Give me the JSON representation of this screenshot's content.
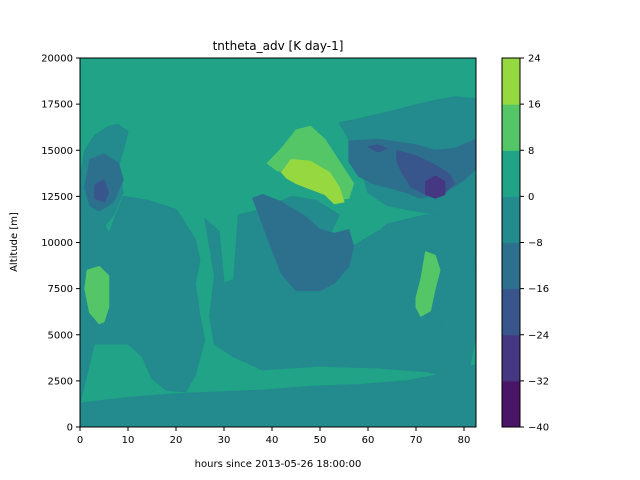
{
  "chart_data": {
    "type": "heatmap",
    "subtype": "filled-contour",
    "title": "tntheta_adv [K day-1]",
    "xlabel": "hours since 2013-05-26 18:00:00",
    "ylabel": "Altitude [m]",
    "xlim": [
      0,
      82.5
    ],
    "ylim": [
      0,
      20000
    ],
    "xticks": [
      0,
      10,
      20,
      30,
      40,
      50,
      60,
      70,
      80
    ],
    "yticks": [
      0,
      2500,
      5000,
      7500,
      10000,
      12500,
      15000,
      17500,
      20000
    ],
    "colorbar": {
      "levels": [
        -40,
        -32,
        -24,
        -16,
        -8,
        0,
        8,
        16,
        24
      ],
      "tick_labels": [
        "−40",
        "−32",
        "−24",
        "−16",
        "−8",
        "0",
        "8",
        "16",
        "24"
      ],
      "colors": [
        "#481567",
        "#453781",
        "#39568c",
        "#2d708e",
        "#238a8d",
        "#20a387",
        "#55c667",
        "#95d840",
        "#dce319"
      ]
    },
    "background_level_index": 5,
    "regions": [
      {
        "level": 4,
        "points": [
          [
            0,
            0
          ],
          [
            82.5,
            0
          ],
          [
            82.5,
            3400
          ],
          [
            78,
            3000
          ],
          [
            68,
            2500
          ],
          [
            58,
            2300
          ],
          [
            48,
            2200
          ],
          [
            38,
            2000
          ],
          [
            20,
            1800
          ],
          [
            10,
            1600
          ],
          [
            0,
            1300
          ]
        ]
      },
      {
        "level": 4,
        "points": [
          [
            0,
            1300
          ],
          [
            3,
            4500
          ],
          [
            10,
            4500
          ],
          [
            13,
            3800
          ],
          [
            15,
            2600
          ],
          [
            18,
            2000
          ],
          [
            22,
            1900
          ],
          [
            24,
            2800
          ],
          [
            26,
            4700
          ],
          [
            25,
            6000
          ],
          [
            24,
            7800
          ],
          [
            25,
            9000
          ],
          [
            24,
            10200
          ],
          [
            20,
            11800
          ],
          [
            14,
            12300
          ],
          [
            9,
            12500
          ],
          [
            6,
            10500
          ],
          [
            3,
            12100
          ],
          [
            0,
            12500
          ]
        ]
      },
      {
        "level": 4,
        "points": [
          [
            26,
            11300
          ],
          [
            28,
            8200
          ],
          [
            27,
            6000
          ],
          [
            28,
            4500
          ],
          [
            32,
            3800
          ],
          [
            38,
            3100
          ],
          [
            50,
            3300
          ],
          [
            62,
            3200
          ],
          [
            72,
            3000
          ],
          [
            78,
            2700
          ],
          [
            81,
            3000
          ],
          [
            82.5,
            5000
          ],
          [
            82.5,
            9800
          ],
          [
            79,
            10500
          ],
          [
            74,
            11000
          ],
          [
            72,
            10700
          ],
          [
            69,
            11000
          ],
          [
            62,
            10600
          ],
          [
            55,
            9500
          ],
          [
            52,
            10400
          ],
          [
            54,
            11500
          ],
          [
            49,
            12300
          ],
          [
            44,
            12500
          ],
          [
            38,
            11800
          ],
          [
            33,
            11500
          ],
          [
            32,
            8000
          ],
          [
            30,
            7800
          ],
          [
            29,
            10600
          ]
        ]
      },
      {
        "level": 4,
        "points": [
          [
            59,
            9800
          ],
          [
            63,
            9000
          ],
          [
            67,
            9300
          ],
          [
            70,
            9000
          ],
          [
            72,
            9500
          ],
          [
            75,
            9000
          ],
          [
            76,
            7500
          ],
          [
            75,
            5000
          ],
          [
            77,
            4200
          ],
          [
            80,
            4500
          ],
          [
            81,
            6500
          ],
          [
            82.5,
            9800
          ],
          [
            82.5,
            11200
          ],
          [
            78,
            11500
          ],
          [
            72,
            11500
          ],
          [
            64,
            11000
          ]
        ]
      },
      {
        "level": 4,
        "points": [
          [
            54,
            16500
          ],
          [
            58,
            16700
          ],
          [
            66,
            17200
          ],
          [
            72,
            17600
          ],
          [
            78,
            17900
          ],
          [
            82.5,
            17800
          ],
          [
            82.5,
            10500
          ],
          [
            80,
            11200
          ],
          [
            75,
            11500
          ],
          [
            70,
            11700
          ],
          [
            64,
            12000
          ],
          [
            60,
            12700
          ],
          [
            58,
            14600
          ],
          [
            56,
            15600
          ]
        ]
      },
      {
        "level": 4,
        "points": [
          [
            0,
            13500
          ],
          [
            1,
            15000
          ],
          [
            3,
            15800
          ],
          [
            6,
            16300
          ],
          [
            8,
            16400
          ],
          [
            10,
            16000
          ],
          [
            9,
            15000
          ],
          [
            8,
            14100
          ],
          [
            9,
            12700
          ],
          [
            7,
            11500
          ],
          [
            4,
            10500
          ],
          [
            2,
            11000
          ],
          [
            1,
            12000
          ],
          [
            0,
            12300
          ]
        ]
      },
      {
        "level": 3,
        "points": [
          [
            36,
            12400
          ],
          [
            38,
            12600
          ],
          [
            42,
            12200
          ],
          [
            47,
            11400
          ],
          [
            50,
            10700
          ],
          [
            53,
            10500
          ],
          [
            56,
            10700
          ],
          [
            57,
            9800
          ],
          [
            56,
            8700
          ],
          [
            53,
            7800
          ],
          [
            50,
            7400
          ],
          [
            45,
            7400
          ],
          [
            42,
            8300
          ],
          [
            40,
            9600
          ],
          [
            38,
            11000
          ]
        ]
      },
      {
        "level": 3,
        "points": [
          [
            2,
            14500
          ],
          [
            5,
            14800
          ],
          [
            8,
            14300
          ],
          [
            9,
            13400
          ],
          [
            7,
            12200
          ],
          [
            4,
            11700
          ],
          [
            2,
            12000
          ],
          [
            1,
            13000
          ]
        ]
      },
      {
        "level": 3,
        "points": [
          [
            56,
            15500
          ],
          [
            62,
            15600
          ],
          [
            70,
            15300
          ],
          [
            74,
            15000
          ],
          [
            78,
            15100
          ],
          [
            82.5,
            15600
          ],
          [
            82.5,
            14000
          ],
          [
            80,
            13400
          ],
          [
            76,
            12700
          ],
          [
            71,
            12400
          ],
          [
            68,
            12700
          ],
          [
            64,
            13000
          ],
          [
            61,
            13200
          ],
          [
            58,
            13600
          ],
          [
            56,
            14400
          ]
        ]
      },
      {
        "level": 2,
        "points": [
          [
            66,
            15000
          ],
          [
            70,
            14700
          ],
          [
            74,
            14200
          ],
          [
            77,
            13700
          ],
          [
            78,
            13200
          ],
          [
            76,
            12700
          ],
          [
            72,
            12600
          ],
          [
            69,
            13000
          ],
          [
            67,
            13800
          ],
          [
            66,
            14400
          ]
        ]
      },
      {
        "level": 2,
        "points": [
          [
            60,
            15200
          ],
          [
            62,
            15300
          ],
          [
            64,
            15100
          ],
          [
            62,
            14900
          ]
        ]
      },
      {
        "level": 2,
        "points": [
          [
            3,
            13100
          ],
          [
            5,
            13400
          ],
          [
            6,
            12700
          ],
          [
            5,
            12200
          ],
          [
            3,
            12400
          ]
        ]
      },
      {
        "level": 1,
        "points": [
          [
            72,
            13300
          ],
          [
            74,
            13600
          ],
          [
            76,
            13300
          ],
          [
            76,
            12600
          ],
          [
            74,
            12400
          ],
          [
            72,
            12600
          ]
        ]
      },
      {
        "level": 6,
        "points": [
          [
            39,
            14300
          ],
          [
            42,
            15100
          ],
          [
            45,
            16100
          ],
          [
            48,
            16300
          ],
          [
            51,
            15600
          ],
          [
            53,
            14800
          ],
          [
            55,
            14000
          ],
          [
            57,
            13200
          ],
          [
            56,
            12400
          ],
          [
            53,
            12300
          ],
          [
            50,
            12800
          ],
          [
            47,
            13200
          ],
          [
            44,
            13700
          ],
          [
            41,
            13900
          ]
        ]
      },
      {
        "level": 7,
        "points": [
          [
            42,
            13800
          ],
          [
            44,
            14500
          ],
          [
            48,
            14400
          ],
          [
            52,
            13800
          ],
          [
            54,
            13000
          ],
          [
            55,
            12200
          ],
          [
            53,
            12100
          ],
          [
            51,
            12600
          ],
          [
            48,
            12900
          ],
          [
            45,
            13200
          ],
          [
            43,
            13500
          ]
        ]
      },
      {
        "level": 6,
        "points": [
          [
            1,
            7500
          ],
          [
            1.5,
            8500
          ],
          [
            4,
            8700
          ],
          [
            6,
            8200
          ],
          [
            6,
            6500
          ],
          [
            5,
            5700
          ],
          [
            4,
            5600
          ],
          [
            2,
            6200
          ]
        ]
      },
      {
        "level": 6,
        "points": [
          [
            70,
            7000
          ],
          [
            70,
            6500
          ],
          [
            71,
            6000
          ],
          [
            73,
            6300
          ],
          [
            74,
            7500
          ],
          [
            75,
            8500
          ],
          [
            74,
            9300
          ],
          [
            72,
            9500
          ],
          [
            71,
            8000
          ]
        ]
      }
    ]
  }
}
